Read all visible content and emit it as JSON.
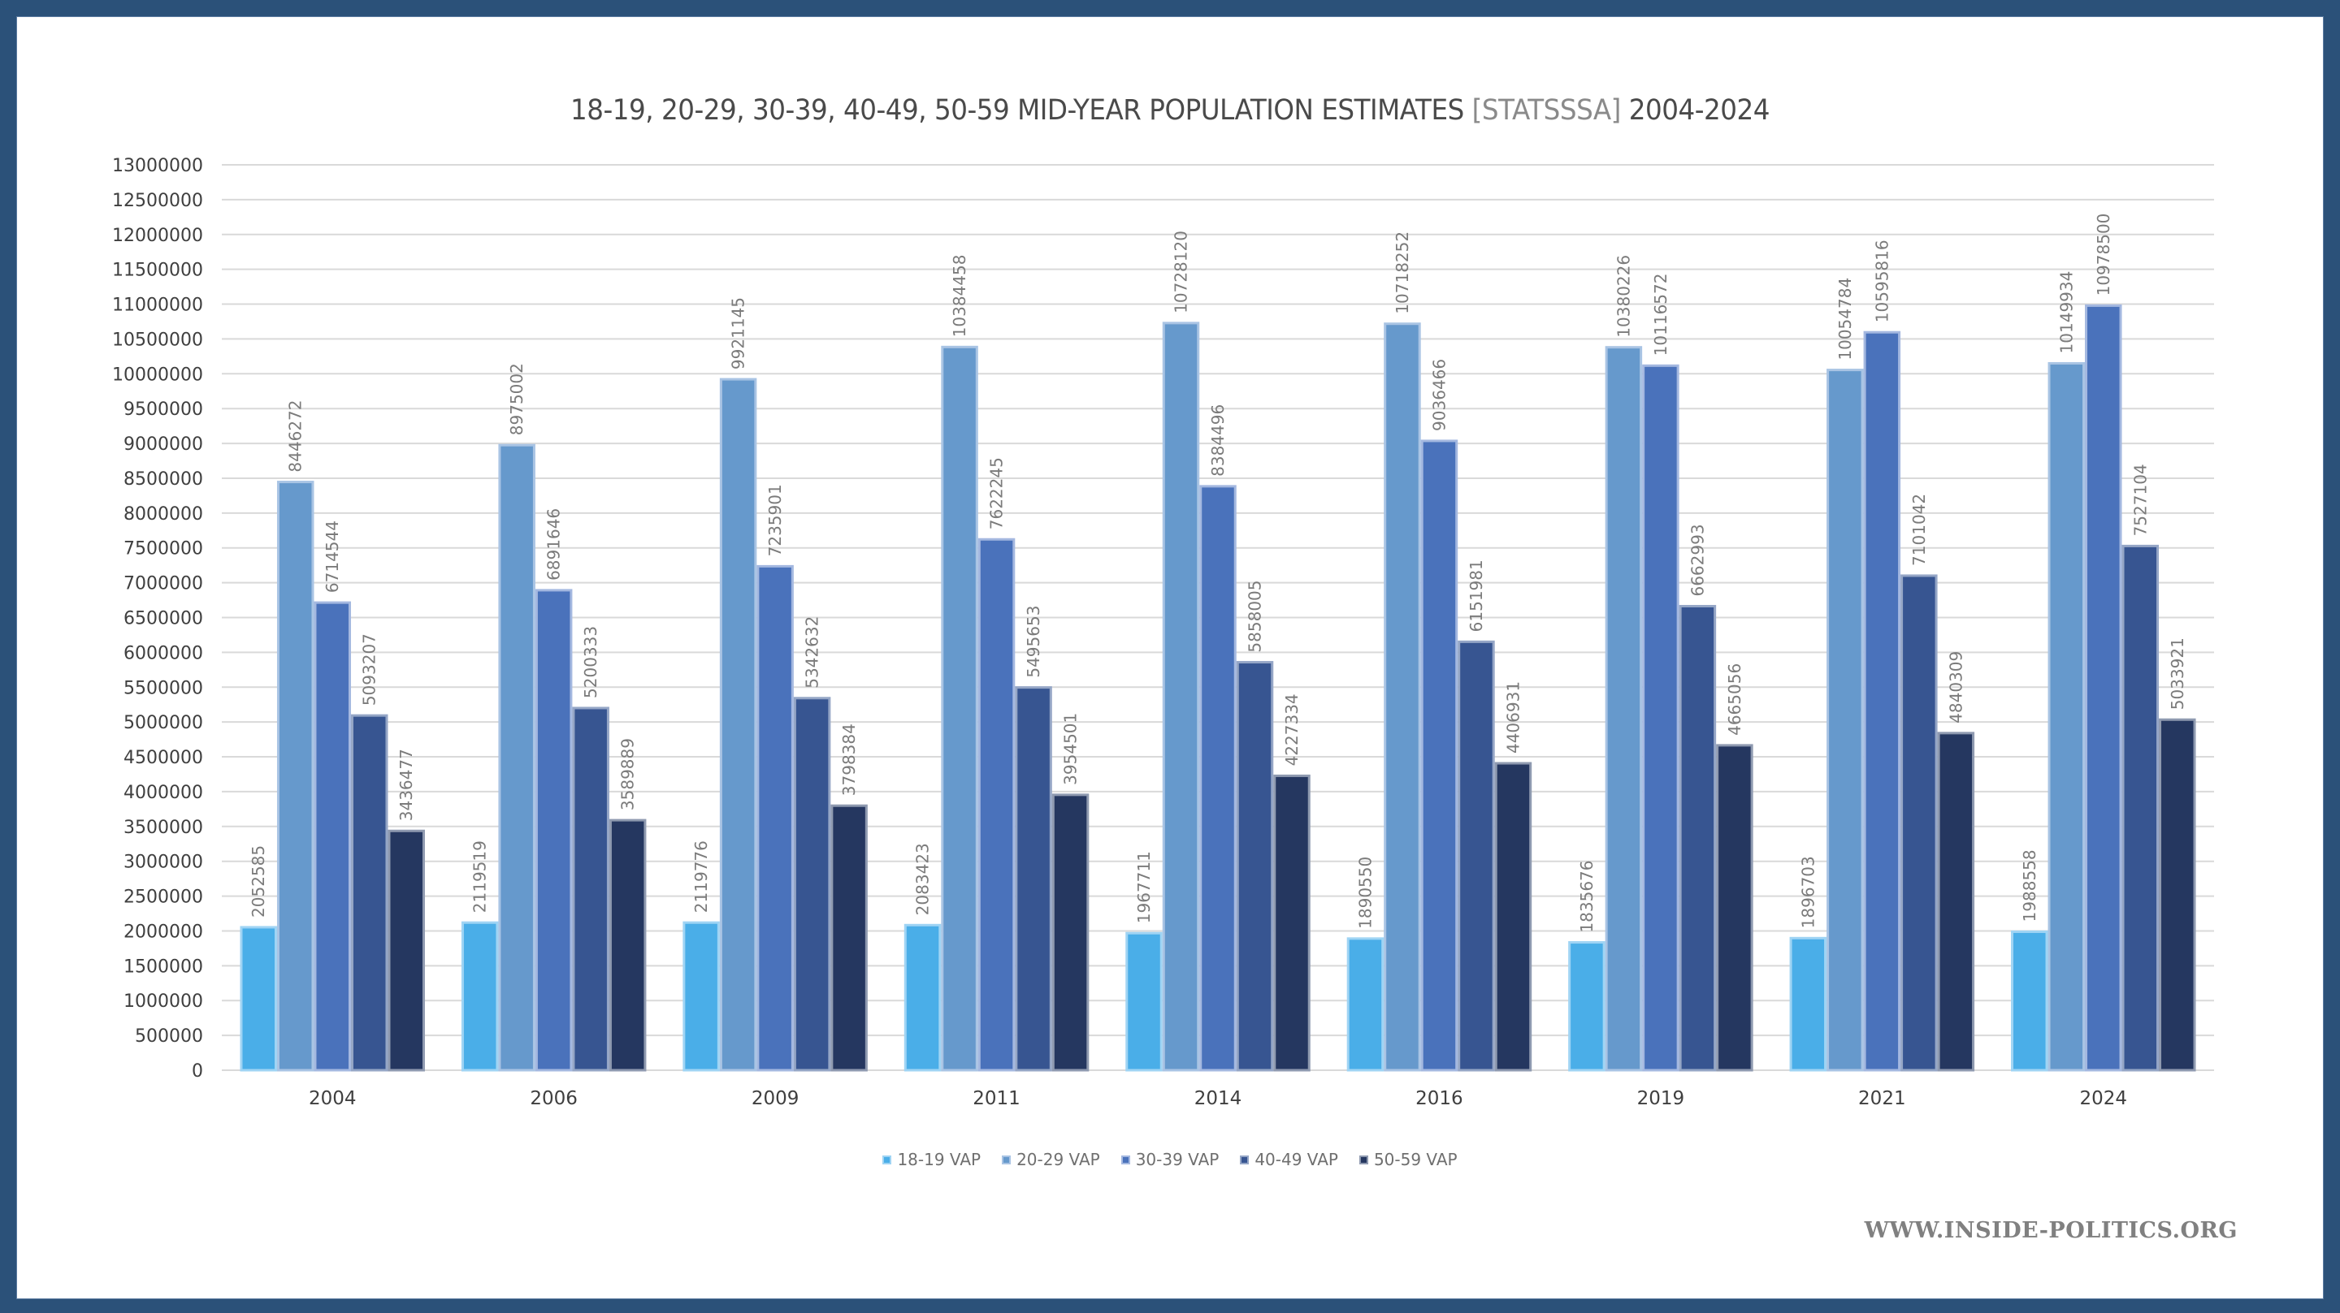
{
  "title": {
    "part1": "18-19, 20-29, 30-39, 40-49, 50-59 MID-YEAR POPULATION ESTIMATES ",
    "source": "[STATSSSA]",
    "part2": " 2004-2024"
  },
  "watermark": "WWW.INSIDE-POLITICS.ORG",
  "colors": {
    "background_frame": "#2b5179",
    "series": [
      "#4aaee8",
      "#6699cc",
      "#4a72bb",
      "#375591",
      "#253760"
    ],
    "series_border": [
      "#9fd4f4",
      "#a9c4e4",
      "#a4b8e0",
      "#95a6c6",
      "#8f9ab0"
    ]
  },
  "chart_data": {
    "type": "bar",
    "title": "18-19, 20-29, 30-39, 40-49, 50-59 MID-YEAR POPULATION ESTIMATES [STATSSSA] 2004-2024",
    "xlabel": "",
    "ylabel": "",
    "ylim": [
      0,
      13000000
    ],
    "ytick_step": 500000,
    "yticks": [
      "0",
      "500000",
      "1000000",
      "1500000",
      "2000000",
      "2500000",
      "3000000",
      "3500000",
      "4000000",
      "4500000",
      "5000000",
      "5500000",
      "6000000",
      "6500000",
      "7000000",
      "7500000",
      "8000000",
      "8500000",
      "9000000",
      "9500000",
      "10000000",
      "10500000",
      "11000000",
      "11500000",
      "12000000",
      "12500000",
      "13000000"
    ],
    "grid": true,
    "legend_position": "bottom",
    "categories": [
      "2004",
      "2006",
      "2009",
      "2011",
      "2014",
      "2016",
      "2019",
      "2021",
      "2024"
    ],
    "series": [
      {
        "name": "18-19 VAP",
        "values": [
          2052585,
          2119519,
          2119776,
          2083423,
          1967711,
          1890550,
          1835676,
          1896703,
          1988558
        ]
      },
      {
        "name": "20-29 VAP",
        "values": [
          8446272,
          8975002,
          9921145,
          10384458,
          10728120,
          10718252,
          10380226,
          10054784,
          10149934
        ]
      },
      {
        "name": "30-39 VAP",
        "values": [
          6714544,
          6891646,
          7235901,
          7622245,
          8384496,
          9036466,
          10116572,
          10595816,
          10978500
        ]
      },
      {
        "name": "40-49 VAP",
        "values": [
          5093207,
          5200333,
          5342632,
          5495653,
          5858005,
          6151981,
          6662993,
          7101042,
          7527104
        ]
      },
      {
        "name": "50-59 VAP",
        "values": [
          3436477,
          3589889,
          3798384,
          3954501,
          4227334,
          4406931,
          4665056,
          4840309,
          5033921
        ]
      }
    ]
  }
}
